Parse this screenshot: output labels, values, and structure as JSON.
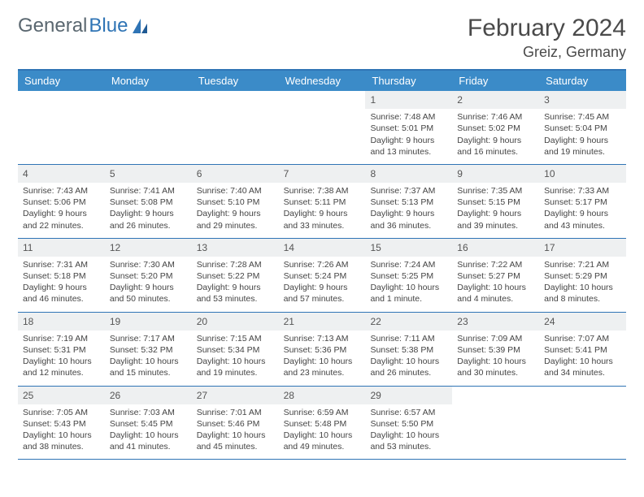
{
  "brand": {
    "word1": "General",
    "word2": "Blue"
  },
  "title": "February 2024",
  "location": "Greiz, Germany",
  "colors": {
    "header_bg": "#3b8bc8",
    "accent_border": "#2f74b5",
    "daynum_bg": "#eef0f1",
    "text": "#444444"
  },
  "day_headers": [
    "Sunday",
    "Monday",
    "Tuesday",
    "Wednesday",
    "Thursday",
    "Friday",
    "Saturday"
  ],
  "weeks": [
    [
      null,
      null,
      null,
      null,
      {
        "n": "1",
        "sr": "Sunrise: 7:48 AM",
        "ss": "Sunset: 5:01 PM",
        "dl": "Daylight: 9 hours and 13 minutes."
      },
      {
        "n": "2",
        "sr": "Sunrise: 7:46 AM",
        "ss": "Sunset: 5:02 PM",
        "dl": "Daylight: 9 hours and 16 minutes."
      },
      {
        "n": "3",
        "sr": "Sunrise: 7:45 AM",
        "ss": "Sunset: 5:04 PM",
        "dl": "Daylight: 9 hours and 19 minutes."
      }
    ],
    [
      {
        "n": "4",
        "sr": "Sunrise: 7:43 AM",
        "ss": "Sunset: 5:06 PM",
        "dl": "Daylight: 9 hours and 22 minutes."
      },
      {
        "n": "5",
        "sr": "Sunrise: 7:41 AM",
        "ss": "Sunset: 5:08 PM",
        "dl": "Daylight: 9 hours and 26 minutes."
      },
      {
        "n": "6",
        "sr": "Sunrise: 7:40 AM",
        "ss": "Sunset: 5:10 PM",
        "dl": "Daylight: 9 hours and 29 minutes."
      },
      {
        "n": "7",
        "sr": "Sunrise: 7:38 AM",
        "ss": "Sunset: 5:11 PM",
        "dl": "Daylight: 9 hours and 33 minutes."
      },
      {
        "n": "8",
        "sr": "Sunrise: 7:37 AM",
        "ss": "Sunset: 5:13 PM",
        "dl": "Daylight: 9 hours and 36 minutes."
      },
      {
        "n": "9",
        "sr": "Sunrise: 7:35 AM",
        "ss": "Sunset: 5:15 PM",
        "dl": "Daylight: 9 hours and 39 minutes."
      },
      {
        "n": "10",
        "sr": "Sunrise: 7:33 AM",
        "ss": "Sunset: 5:17 PM",
        "dl": "Daylight: 9 hours and 43 minutes."
      }
    ],
    [
      {
        "n": "11",
        "sr": "Sunrise: 7:31 AM",
        "ss": "Sunset: 5:18 PM",
        "dl": "Daylight: 9 hours and 46 minutes."
      },
      {
        "n": "12",
        "sr": "Sunrise: 7:30 AM",
        "ss": "Sunset: 5:20 PM",
        "dl": "Daylight: 9 hours and 50 minutes."
      },
      {
        "n": "13",
        "sr": "Sunrise: 7:28 AM",
        "ss": "Sunset: 5:22 PM",
        "dl": "Daylight: 9 hours and 53 minutes."
      },
      {
        "n": "14",
        "sr": "Sunrise: 7:26 AM",
        "ss": "Sunset: 5:24 PM",
        "dl": "Daylight: 9 hours and 57 minutes."
      },
      {
        "n": "15",
        "sr": "Sunrise: 7:24 AM",
        "ss": "Sunset: 5:25 PM",
        "dl": "Daylight: 10 hours and 1 minute."
      },
      {
        "n": "16",
        "sr": "Sunrise: 7:22 AM",
        "ss": "Sunset: 5:27 PM",
        "dl": "Daylight: 10 hours and 4 minutes."
      },
      {
        "n": "17",
        "sr": "Sunrise: 7:21 AM",
        "ss": "Sunset: 5:29 PM",
        "dl": "Daylight: 10 hours and 8 minutes."
      }
    ],
    [
      {
        "n": "18",
        "sr": "Sunrise: 7:19 AM",
        "ss": "Sunset: 5:31 PM",
        "dl": "Daylight: 10 hours and 12 minutes."
      },
      {
        "n": "19",
        "sr": "Sunrise: 7:17 AM",
        "ss": "Sunset: 5:32 PM",
        "dl": "Daylight: 10 hours and 15 minutes."
      },
      {
        "n": "20",
        "sr": "Sunrise: 7:15 AM",
        "ss": "Sunset: 5:34 PM",
        "dl": "Daylight: 10 hours and 19 minutes."
      },
      {
        "n": "21",
        "sr": "Sunrise: 7:13 AM",
        "ss": "Sunset: 5:36 PM",
        "dl": "Daylight: 10 hours and 23 minutes."
      },
      {
        "n": "22",
        "sr": "Sunrise: 7:11 AM",
        "ss": "Sunset: 5:38 PM",
        "dl": "Daylight: 10 hours and 26 minutes."
      },
      {
        "n": "23",
        "sr": "Sunrise: 7:09 AM",
        "ss": "Sunset: 5:39 PM",
        "dl": "Daylight: 10 hours and 30 minutes."
      },
      {
        "n": "24",
        "sr": "Sunrise: 7:07 AM",
        "ss": "Sunset: 5:41 PM",
        "dl": "Daylight: 10 hours and 34 minutes."
      }
    ],
    [
      {
        "n": "25",
        "sr": "Sunrise: 7:05 AM",
        "ss": "Sunset: 5:43 PM",
        "dl": "Daylight: 10 hours and 38 minutes."
      },
      {
        "n": "26",
        "sr": "Sunrise: 7:03 AM",
        "ss": "Sunset: 5:45 PM",
        "dl": "Daylight: 10 hours and 41 minutes."
      },
      {
        "n": "27",
        "sr": "Sunrise: 7:01 AM",
        "ss": "Sunset: 5:46 PM",
        "dl": "Daylight: 10 hours and 45 minutes."
      },
      {
        "n": "28",
        "sr": "Sunrise: 6:59 AM",
        "ss": "Sunset: 5:48 PM",
        "dl": "Daylight: 10 hours and 49 minutes."
      },
      {
        "n": "29",
        "sr": "Sunrise: 6:57 AM",
        "ss": "Sunset: 5:50 PM",
        "dl": "Daylight: 10 hours and 53 minutes."
      },
      null,
      null
    ]
  ]
}
